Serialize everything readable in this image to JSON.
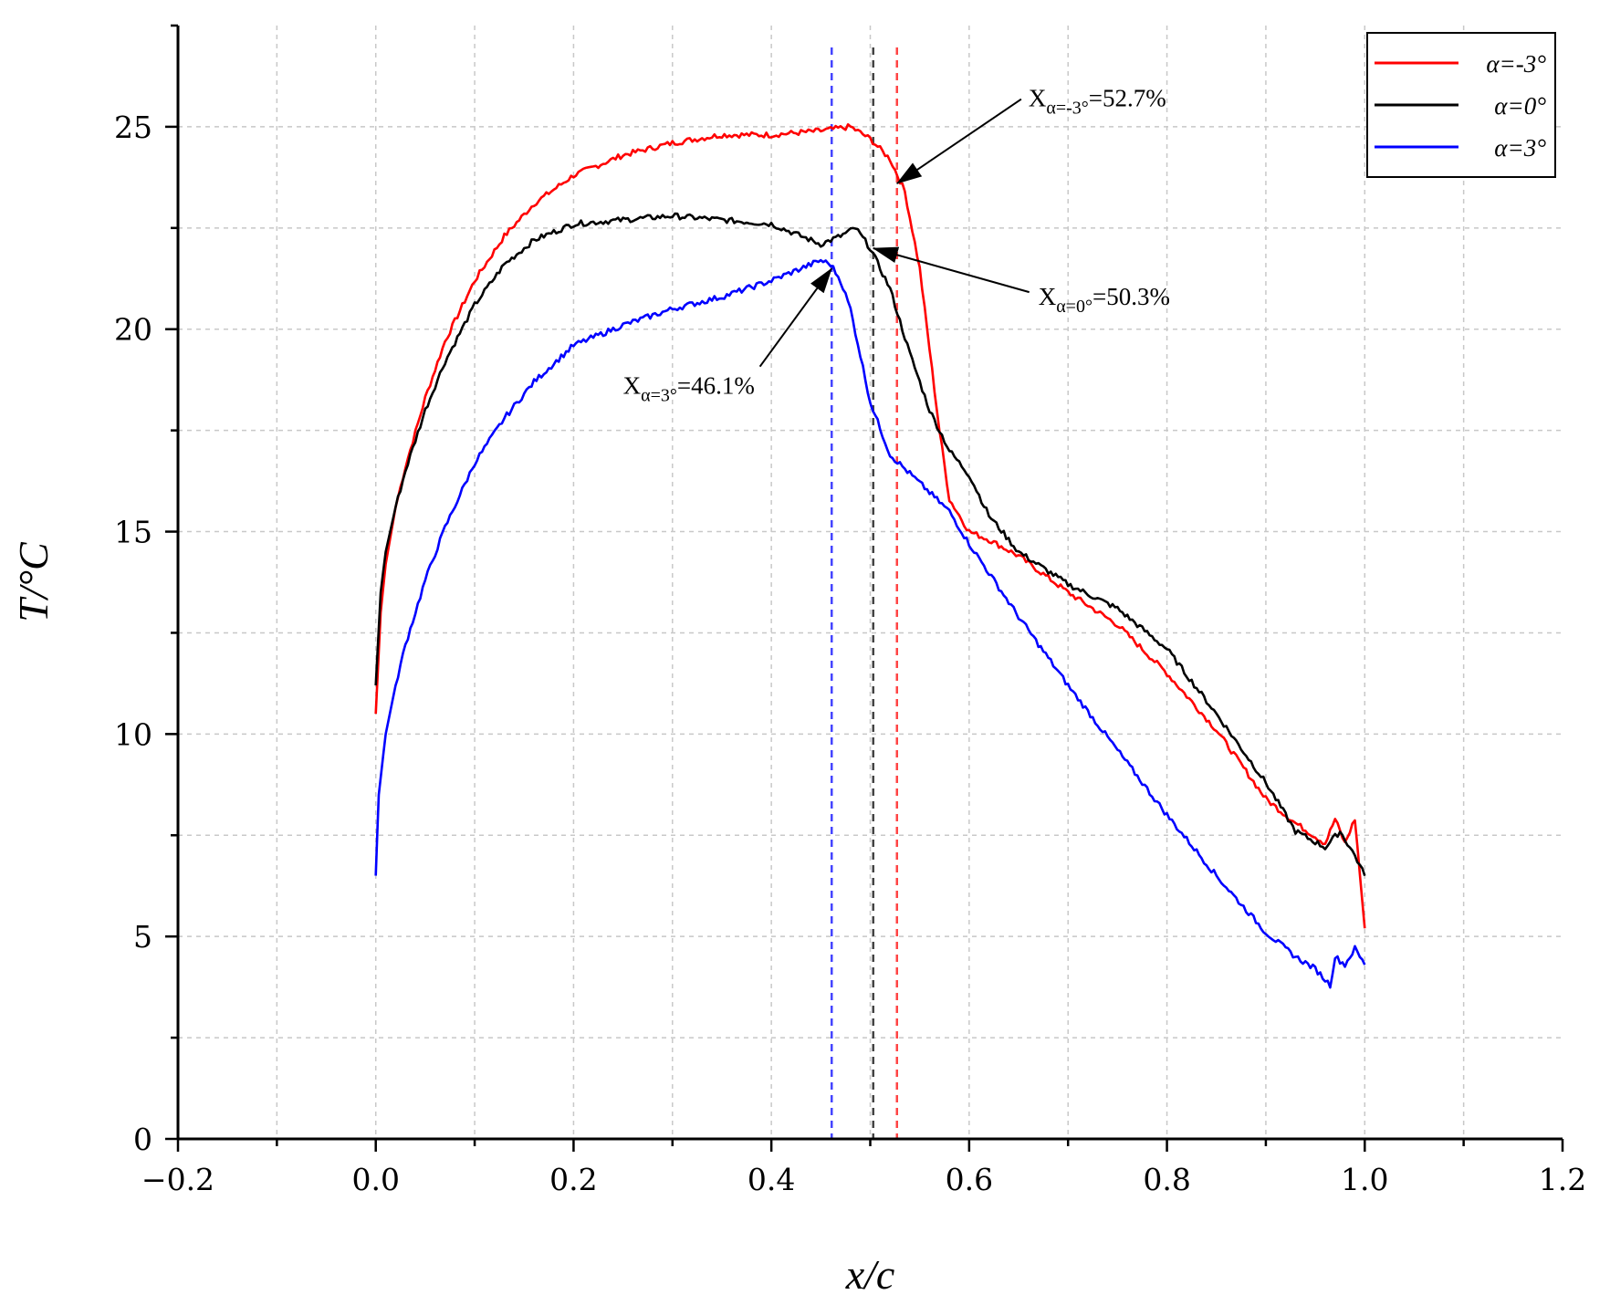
{
  "chart_data": {
    "type": "line",
    "xlabel": "x/c",
    "ylabel": "T/°C",
    "xlim": [
      -0.2,
      1.2
    ],
    "ylim": [
      0,
      27.5
    ],
    "x_ticks": [
      -0.2,
      0.0,
      0.2,
      0.4,
      0.6,
      0.8,
      1.0,
      1.2
    ],
    "x_tick_labels": [
      "−0.2",
      "0.0",
      "0.2",
      "0.4",
      "0.6",
      "0.8",
      "1.0",
      "1.2"
    ],
    "y_ticks": [
      0,
      5,
      10,
      15,
      20,
      25
    ],
    "y_tick_labels": [
      "0",
      "5",
      "10",
      "15",
      "20",
      "25"
    ],
    "grid": true,
    "legend_position": "top-right",
    "series": [
      {
        "name": "α=-3°",
        "color": "#ff0000",
        "x": [
          0.0,
          0.005,
          0.01,
          0.02,
          0.03,
          0.05,
          0.07,
          0.1,
          0.13,
          0.16,
          0.2,
          0.25,
          0.3,
          0.35,
          0.4,
          0.45,
          0.48,
          0.5,
          0.52,
          0.535,
          0.55,
          0.56,
          0.57,
          0.58,
          0.6,
          0.62,
          0.65,
          0.7,
          0.75,
          0.8,
          0.85,
          0.9,
          0.93,
          0.96,
          0.97,
          0.98,
          0.99,
          1.0
        ],
        "values": [
          10.5,
          13.0,
          14.2,
          15.6,
          16.6,
          18.3,
          19.7,
          21.2,
          22.3,
          23.1,
          23.8,
          24.3,
          24.6,
          24.8,
          24.8,
          24.9,
          25.0,
          24.7,
          24.2,
          23.4,
          21.5,
          19.5,
          17.5,
          15.8,
          15.0,
          14.8,
          14.4,
          13.5,
          12.7,
          11.5,
          10.1,
          8.4,
          7.8,
          7.3,
          7.9,
          7.3,
          7.9,
          5.2
        ]
      },
      {
        "name": "α=0°",
        "color": "#000000",
        "x": [
          0.0,
          0.005,
          0.01,
          0.02,
          0.03,
          0.05,
          0.07,
          0.1,
          0.13,
          0.16,
          0.2,
          0.25,
          0.3,
          0.35,
          0.4,
          0.43,
          0.45,
          0.47,
          0.485,
          0.5,
          0.52,
          0.54,
          0.56,
          0.58,
          0.6,
          0.62,
          0.65,
          0.7,
          0.75,
          0.8,
          0.85,
          0.9,
          0.93,
          0.96,
          0.975,
          0.99,
          1.0
        ],
        "values": [
          11.2,
          13.5,
          14.5,
          15.6,
          16.5,
          18.0,
          19.2,
          20.6,
          21.6,
          22.2,
          22.6,
          22.7,
          22.8,
          22.7,
          22.6,
          22.3,
          22.1,
          22.3,
          22.5,
          22.0,
          21.0,
          19.4,
          18.0,
          17.0,
          16.4,
          15.4,
          14.5,
          13.7,
          13.1,
          12.1,
          10.5,
          8.8,
          7.6,
          7.2,
          7.6,
          7.0,
          6.5
        ]
      },
      {
        "name": "α=3°",
        "color": "#0000ff",
        "x": [
          0.0,
          0.003,
          0.01,
          0.02,
          0.03,
          0.05,
          0.07,
          0.1,
          0.13,
          0.16,
          0.2,
          0.25,
          0.3,
          0.35,
          0.4,
          0.43,
          0.45,
          0.46,
          0.47,
          0.48,
          0.5,
          0.52,
          0.55,
          0.58,
          0.6,
          0.65,
          0.7,
          0.75,
          0.8,
          0.85,
          0.9,
          0.93,
          0.95,
          0.965,
          0.97,
          0.98,
          0.99,
          1.0
        ],
        "values": [
          6.5,
          8.5,
          10.0,
          11.2,
          12.2,
          13.8,
          15.1,
          16.7,
          17.8,
          18.7,
          19.6,
          20.1,
          20.5,
          20.8,
          21.2,
          21.5,
          21.7,
          21.6,
          21.2,
          20.5,
          18.2,
          16.9,
          16.2,
          15.5,
          14.7,
          12.9,
          11.2,
          9.6,
          8.0,
          6.5,
          5.1,
          4.5,
          4.2,
          3.8,
          4.5,
          4.3,
          4.7,
          4.3
        ]
      }
    ],
    "vertical_lines": [
      {
        "x": 0.461,
        "color": "#4444ff",
        "style": "dashed"
      },
      {
        "x": 0.503,
        "color": "#444444",
        "style": "dashed"
      },
      {
        "x": 0.527,
        "color": "#ff4444",
        "style": "dashed"
      }
    ],
    "annotations": [
      {
        "prefix": "X",
        "sub": "α=-3°",
        "suffix": "=52.7%",
        "text_x": 0.66,
        "text_y": 25.5,
        "arrow_x": 0.527,
        "arrow_y": 23.6
      },
      {
        "prefix": "X",
        "sub": "α=0°",
        "suffix": "=50.3%",
        "text_x": 0.67,
        "text_y": 20.6,
        "arrow_x": 0.503,
        "arrow_y": 22.0
      },
      {
        "prefix": "X",
        "sub": "α=3°",
        "suffix": "=46.1%",
        "text_x": 0.25,
        "text_y": 18.4,
        "arrow_x": 0.461,
        "arrow_y": 21.5
      }
    ]
  }
}
